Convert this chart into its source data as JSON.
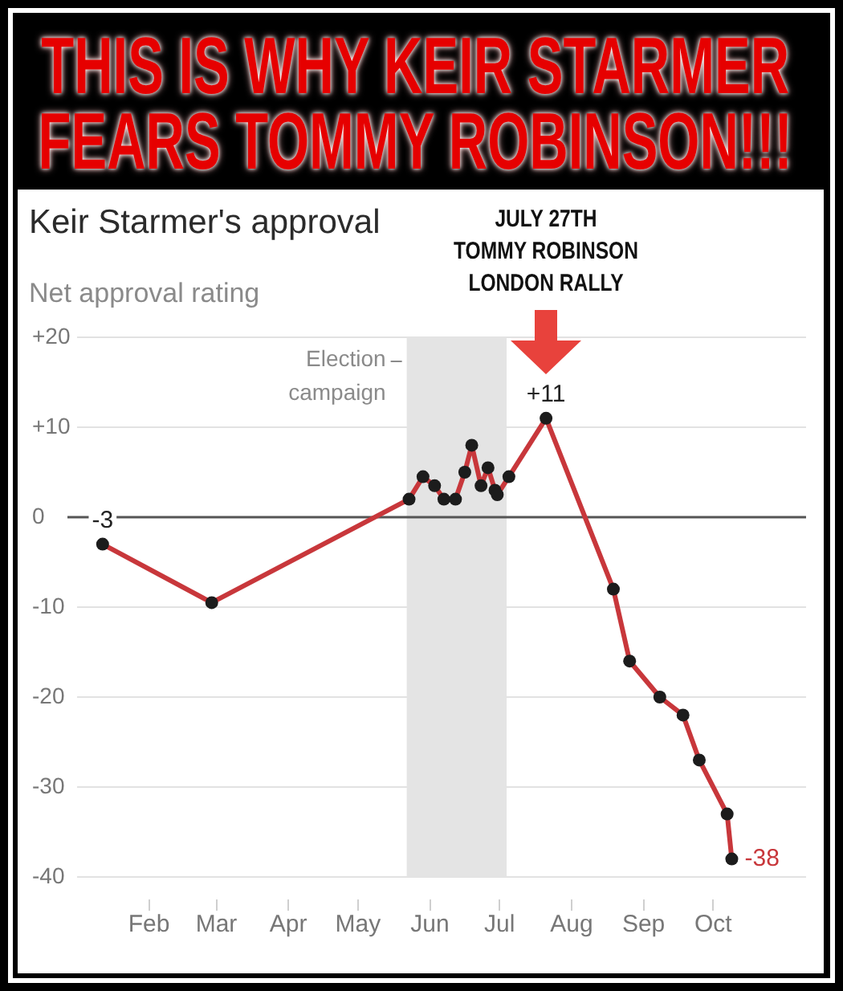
{
  "chart_data": {
    "type": "line",
    "title": "THIS IS WHY KEIR STARMER FEARS TOMMY ROBINSON!!!",
    "subtitle": "Keir Starmer's approval",
    "ylabel": "Net approval rating",
    "x": [
      "--01-12",
      "--02-28",
      "--05-23",
      "--05-29",
      "--06-03",
      "--06-07",
      "--06-12",
      "--06-16",
      "--06-19",
      "--06-23",
      "--06-26",
      "--06-29",
      "--06-30",
      "--07-05",
      "--07-21",
      "--08-19",
      "--08-26",
      "--09-08",
      "--09-18",
      "--09-25",
      "--10-07",
      "--10-09"
    ],
    "values": [
      -3,
      -9.5,
      2,
      4.5,
      3.5,
      2,
      2,
      5,
      8,
      3.5,
      5.5,
      3,
      2.5,
      4.5,
      11,
      -8,
      -16,
      -20,
      -22,
      -27,
      -33,
      -38
    ],
    "color": "#c8373b",
    "value_labels": [
      "-3",
      null,
      null,
      null,
      null,
      null,
      null,
      null,
      null,
      null,
      null,
      null,
      null,
      null,
      "+11",
      null,
      null,
      null,
      null,
      null,
      null,
      "-38"
    ],
    "marker": "circle",
    "grid": "y",
    "xlim": [
      "--01-01",
      "--11-10"
    ],
    "xticks": [
      {
        "value": "--02-01",
        "label": "Feb"
      },
      {
        "value": "--03-01",
        "label": "Mar"
      },
      {
        "value": "--04-01",
        "label": "Apr"
      },
      {
        "value": "--05-01",
        "label": "May"
      },
      {
        "value": "--06-01",
        "label": "Jun"
      },
      {
        "value": "--07-01",
        "label": "Jul"
      },
      {
        "value": "--08-01",
        "label": "Aug"
      },
      {
        "value": "--09-01",
        "label": "Sep"
      },
      {
        "value": "--10-01",
        "label": "Oct"
      }
    ],
    "ylim": [
      -40,
      20
    ],
    "yticks": [
      {
        "value": 20,
        "label": "+20"
      },
      {
        "value": 10,
        "label": "+10"
      },
      0,
      -10,
      -20,
      -30,
      -40
    ],
    "ref_lines": [
      {
        "axis": "y",
        "value": 0,
        "color": "#555555"
      }
    ],
    "bands": [
      {
        "axis": "x",
        "from": "--05-22",
        "to": "--07-04",
        "label": "Election\ncampaign",
        "color": "#e4e4e4"
      }
    ],
    "annotations": [
      "JULY 27TH\nTOMMY ROBINSON\nLONDON RALLY"
    ]
  }
}
